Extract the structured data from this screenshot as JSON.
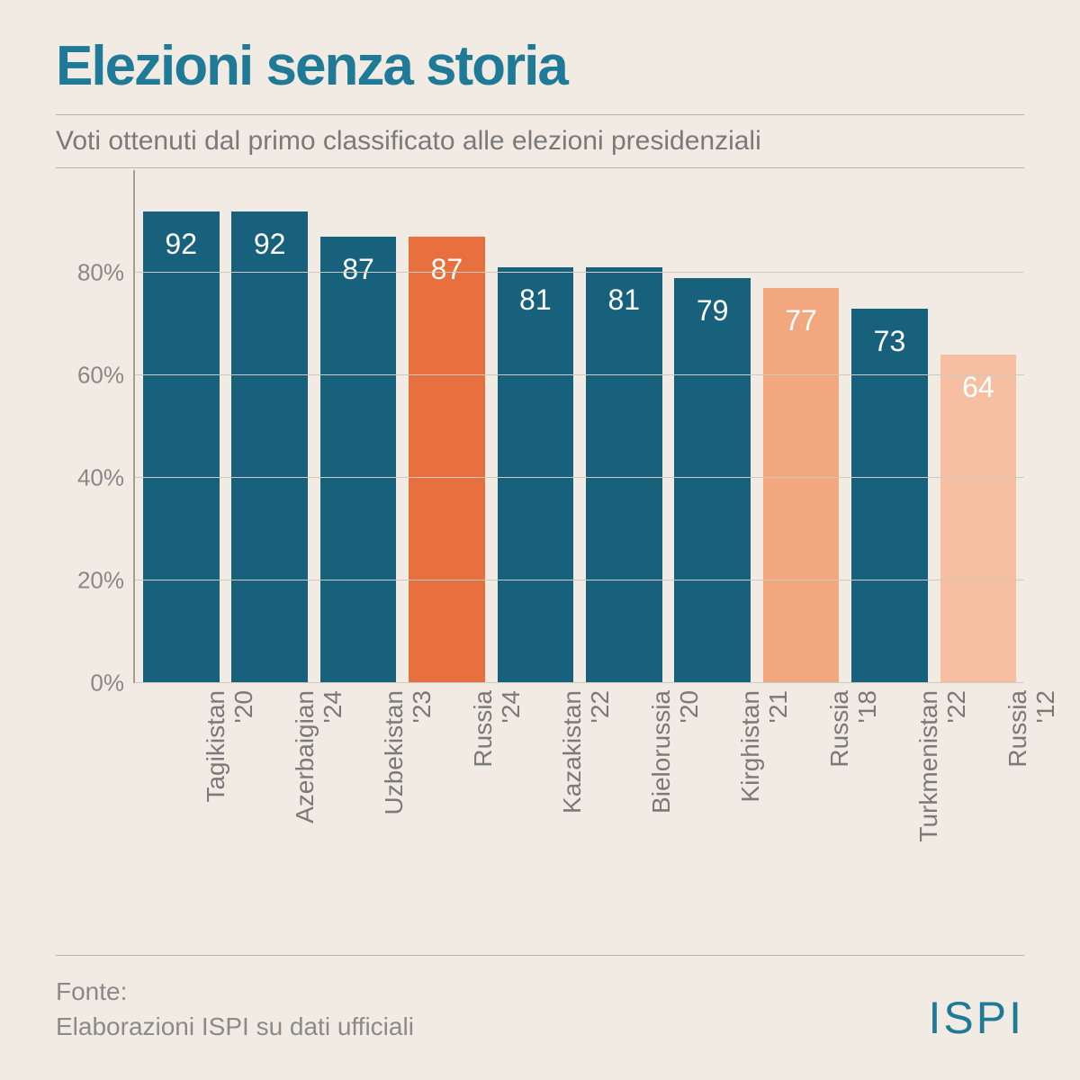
{
  "title": "Elezioni senza storia",
  "subtitle": "Voti ottenuti dal primo classificato alle elezioni presidenziali",
  "chart": {
    "type": "bar",
    "ylim": [
      0,
      100
    ],
    "yticks": [
      0,
      20,
      40,
      60,
      80
    ],
    "ytick_labels": [
      "0%",
      "20%",
      "40%",
      "60%",
      "80%"
    ],
    "grid_color": "#cfc9bf",
    "axis_color": "#a59e94",
    "background_color": "#f2ebe3",
    "bar_value_color": "#ffffff",
    "bar_value_fontsize": 32,
    "x_label_fontsize": 28,
    "x_label_color": "#7a7a7a",
    "y_label_fontsize": 26,
    "y_label_color": "#888888",
    "colors": {
      "primary": "#18617d",
      "highlight_strong": "#e86f3e",
      "highlight_mid": "#f2a77e",
      "highlight_light": "#f6bfa1"
    },
    "bars": [
      {
        "country": "Tagikistan",
        "year": "'20",
        "value": 92,
        "color": "#18617d"
      },
      {
        "country": "Azerbaigian",
        "year": "'24",
        "value": 92,
        "color": "#18617d"
      },
      {
        "country": "Uzbekistan",
        "year": "'23",
        "value": 87,
        "color": "#18617d"
      },
      {
        "country": "Russia",
        "year": "'24",
        "value": 87,
        "color": "#e86f3e"
      },
      {
        "country": "Kazakistan",
        "year": "'22",
        "value": 81,
        "color": "#18617d"
      },
      {
        "country": "Bielorussia",
        "year": "'20",
        "value": 81,
        "color": "#18617d"
      },
      {
        "country": "Kirghistan",
        "year": "'21",
        "value": 79,
        "color": "#18617d"
      },
      {
        "country": "Russia",
        "year": "'18",
        "value": 77,
        "color": "#f2a77e"
      },
      {
        "country": "Turkmenistan",
        "year": "'22",
        "value": 73,
        "color": "#18617d"
      },
      {
        "country": "Russia",
        "year": "'12",
        "value": 64,
        "color": "#f6bfa1"
      }
    ]
  },
  "source_label": "Fonte:",
  "source_text": "Elaborazioni ISPI su dati ufficiali",
  "logo_text": "ISPI"
}
